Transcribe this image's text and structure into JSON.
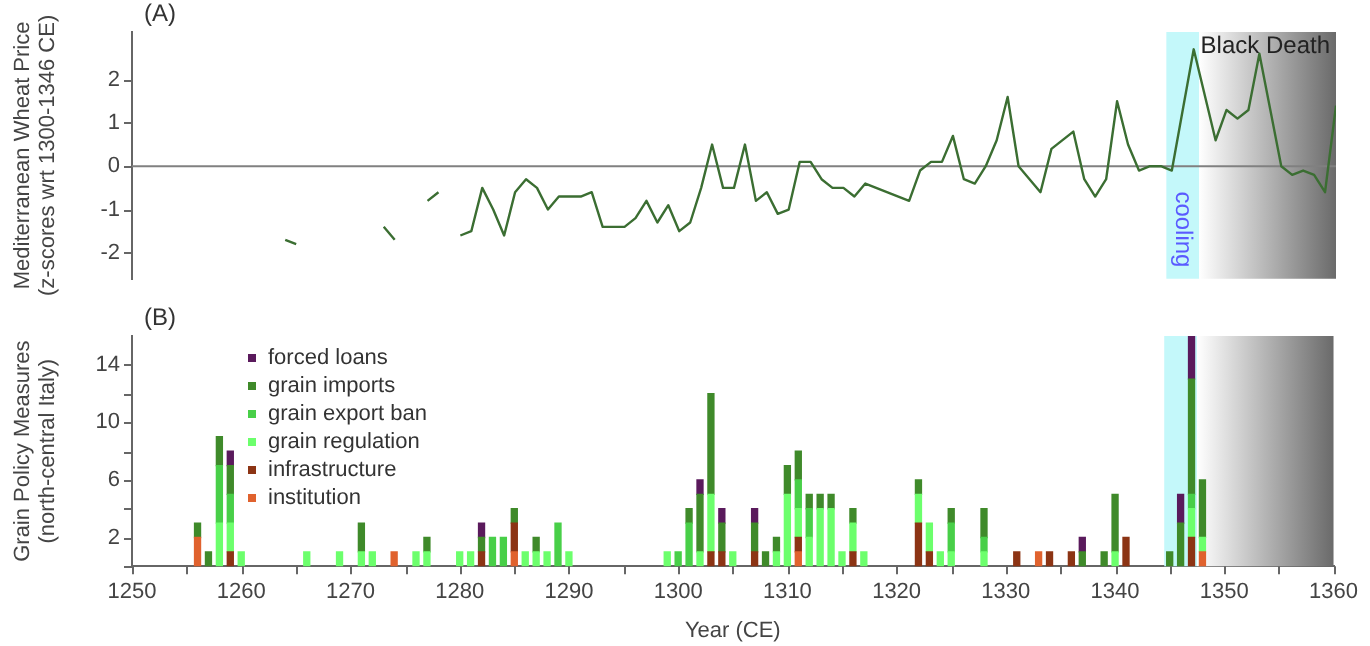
{
  "chart_data": [
    {
      "type": "line",
      "ylabel": "Mediterranean Wheat Price\n(z-scores wrt 1300-1346 CE)",
      "annotations": [
        "(A)"
      ],
      "xlim": [
        1250,
        1360
      ],
      "ylim": [
        -2.6,
        3.1
      ],
      "yticks": [
        -2,
        -1,
        0,
        1,
        2
      ],
      "tick_labels": "y",
      "grid": false,
      "marker": "none",
      "ref_lines": [
        {
          "axis": "y",
          "value": 0,
          "color": "#808080"
        }
      ],
      "bands": [
        {
          "axis": "x",
          "from": 1344.5,
          "to": 1347.5,
          "label": "cooling",
          "color": "#c4f8fa"
        },
        {
          "axis": "x",
          "from": 1347.5,
          "to": 1360,
          "label": "Black Death",
          "color": "#6a6a6a"
        }
      ],
      "series": [
        {
          "color": "#3b6e32",
          "x": [
            1264,
            1265,
            1266,
            1273,
            1274,
            1275,
            1277,
            1278,
            1279,
            1280,
            1281,
            1282,
            1283,
            1284,
            1285,
            1286,
            1287,
            1288,
            1289,
            1290,
            1291,
            1292,
            1293,
            1294,
            1295,
            1296,
            1297,
            1298,
            1299,
            1300,
            1301,
            1302,
            1303,
            1304,
            1305,
            1306,
            1307,
            1308,
            1309,
            1310,
            1311,
            1312,
            1313,
            1314,
            1315,
            1316,
            1317,
            1321,
            1322,
            1323,
            1324,
            1325,
            1326,
            1327,
            1328,
            1329,
            1330,
            1331,
            1333,
            1334,
            1336,
            1337,
            1338,
            1339,
            1340,
            1341,
            1342,
            1343,
            1344,
            1345,
            1347,
            1349,
            1350,
            1351,
            1352,
            1353,
            1355,
            1356,
            1357,
            1358,
            1359,
            1360
          ],
          "values": [
            -1.7,
            -1.8,
            null,
            -1.4,
            -1.7,
            null,
            -0.8,
            -0.6,
            null,
            -1.6,
            -1.5,
            -0.5,
            -1.0,
            -1.6,
            -0.6,
            -0.3,
            -0.5,
            -1.0,
            -0.7,
            -0.7,
            -0.7,
            -0.6,
            -1.4,
            -1.4,
            -1.4,
            -1.2,
            -0.8,
            -1.3,
            -0.9,
            -1.5,
            -1.3,
            -0.5,
            0.5,
            -0.5,
            -0.5,
            0.5,
            -0.8,
            -0.6,
            -1.1,
            -1.0,
            0.1,
            0.1,
            -0.3,
            -0.5,
            -0.5,
            -0.7,
            -0.4,
            -0.8,
            -0.1,
            0.1,
            0.1,
            0.7,
            -0.3,
            -0.4,
            0.0,
            0.6,
            1.6,
            0.0,
            -0.6,
            0.4,
            0.8,
            -0.3,
            -0.7,
            -0.3,
            1.5,
            0.5,
            -0.1,
            0.0,
            0.0,
            -0.1,
            2.7,
            0.6,
            1.3,
            1.1,
            1.3,
            2.6,
            0.0,
            -0.2,
            -0.1,
            -0.2,
            -0.6,
            1.4
          ]
        }
      ]
    },
    {
      "type": "bar",
      "stacked": true,
      "xlabel": "Year (CE)",
      "ylabel": "Grain Policy Measures\n(north-central Italy)",
      "annotations": [
        "(B)"
      ],
      "legend": "top left",
      "grid": false,
      "xlim": [
        1250,
        1360
      ],
      "xticks": [
        1250,
        {
          "value": 1255,
          "label": null
        },
        1260,
        {
          "value": 1265,
          "label": null
        },
        1270,
        {
          "value": 1275,
          "label": null
        },
        1280,
        {
          "value": 1285,
          "label": null
        },
        1290,
        {
          "value": 1295,
          "label": null
        },
        1300,
        {
          "value": 1305,
          "label": null
        },
        1310,
        {
          "value": 1315,
          "label": null
        },
        1320,
        {
          "value": 1325,
          "label": null
        },
        1330,
        {
          "value": 1335,
          "label": null
        },
        1340,
        {
          "value": 1345,
          "label": null
        },
        1350,
        {
          "value": 1355,
          "label": null
        },
        1360
      ],
      "ylim": [
        0,
        16
      ],
      "yticks": [
        {
          "value": 0,
          "label": null
        },
        2,
        {
          "value": 4,
          "label": null
        },
        6,
        {
          "value": 8,
          "label": null
        },
        10,
        {
          "value": 12,
          "label": null
        },
        14
      ],
      "bands": [
        {
          "axis": "x",
          "from": 1344.5,
          "to": 1347.5,
          "color": "#c4f8fa"
        },
        {
          "axis": "x",
          "from": 1347.5,
          "to": 1360,
          "color": "#6a6a6a"
        }
      ],
      "x": [
        1256,
        1257,
        1258,
        1259,
        1260,
        1266,
        1269,
        1271,
        1272,
        1274,
        1276,
        1277,
        1280,
        1281,
        1282,
        1283,
        1284,
        1285,
        1286,
        1287,
        1288,
        1289,
        1290,
        1299,
        1300,
        1301,
        1302,
        1303,
        1304,
        1305,
        1307,
        1308,
        1309,
        1310,
        1311,
        1312,
        1313,
        1314,
        1315,
        1316,
        1317,
        1322,
        1323,
        1324,
        1325,
        1328,
        1331,
        1333,
        1334,
        1336,
        1337,
        1339,
        1340,
        1341,
        1345,
        1346,
        1347,
        1348
      ],
      "series": [
        {
          "name": "institution",
          "color": "#e0622e",
          "values": [
            2,
            null,
            null,
            null,
            null,
            null,
            null,
            null,
            null,
            1,
            null,
            null,
            null,
            null,
            null,
            null,
            null,
            1,
            null,
            null,
            null,
            null,
            null,
            null,
            null,
            null,
            null,
            null,
            null,
            null,
            null,
            null,
            null,
            null,
            1,
            null,
            null,
            null,
            null,
            null,
            null,
            null,
            null,
            null,
            null,
            null,
            null,
            1,
            null,
            null,
            null,
            null,
            null,
            null,
            null,
            null,
            null,
            1
          ]
        },
        {
          "name": "infrastructure",
          "color": "#8c3414",
          "values": [
            null,
            null,
            null,
            1,
            null,
            null,
            null,
            null,
            null,
            null,
            null,
            null,
            null,
            null,
            1,
            null,
            null,
            2,
            null,
            null,
            null,
            null,
            null,
            null,
            null,
            null,
            null,
            1,
            1,
            null,
            1,
            null,
            null,
            null,
            1,
            null,
            null,
            null,
            null,
            1,
            null,
            3,
            1,
            null,
            null,
            null,
            1,
            null,
            1,
            1,
            null,
            null,
            null,
            2,
            null,
            null,
            2,
            null
          ]
        },
        {
          "name": "grain regulation",
          "color": "#6cff6c",
          "values": [
            null,
            null,
            3,
            2,
            1,
            1,
            1,
            1,
            1,
            null,
            1,
            1,
            1,
            1,
            null,
            null,
            null,
            null,
            1,
            1,
            1,
            null,
            1,
            1,
            null,
            null,
            1,
            4,
            null,
            1,
            null,
            null,
            1,
            5,
            2,
            2,
            4,
            4,
            1,
            2,
            1,
            2,
            2,
            1,
            1,
            1,
            null,
            null,
            null,
            null,
            null,
            null,
            1,
            null,
            null,
            null,
            2,
            1
          ]
        },
        {
          "name": "grain export ban",
          "color": "#48cf48",
          "values": [
            null,
            null,
            4,
            2,
            null,
            null,
            null,
            null,
            null,
            null,
            null,
            null,
            null,
            null,
            null,
            2,
            2,
            null,
            null,
            null,
            null,
            3,
            null,
            null,
            1,
            3,
            null,
            null,
            null,
            null,
            null,
            null,
            null,
            null,
            2,
            2,
            null,
            null,
            null,
            null,
            null,
            null,
            null,
            null,
            2,
            1,
            null,
            null,
            null,
            null,
            null,
            null,
            null,
            null,
            null,
            null,
            1,
            null
          ]
        },
        {
          "name": "grain imports",
          "color": "#3f8a2a",
          "values": [
            1,
            1,
            2,
            2,
            null,
            null,
            null,
            2,
            null,
            null,
            null,
            1,
            null,
            null,
            1,
            null,
            null,
            1,
            null,
            1,
            null,
            null,
            null,
            null,
            null,
            1,
            4,
            7,
            2,
            null,
            2,
            1,
            1,
            2,
            2,
            1,
            1,
            1,
            null,
            1,
            null,
            1,
            null,
            null,
            1,
            2,
            null,
            null,
            null,
            null,
            1,
            1,
            4,
            null,
            1,
            3,
            8,
            4
          ]
        },
        {
          "name": "forced loans",
          "color": "#5a1a5c",
          "values": [
            null,
            null,
            null,
            1,
            null,
            null,
            null,
            null,
            null,
            null,
            null,
            null,
            null,
            null,
            1,
            null,
            null,
            null,
            null,
            null,
            null,
            null,
            null,
            null,
            null,
            null,
            1,
            null,
            1,
            null,
            1,
            null,
            null,
            null,
            null,
            null,
            null,
            null,
            null,
            null,
            null,
            null,
            null,
            null,
            null,
            null,
            null,
            null,
            null,
            null,
            1,
            null,
            null,
            null,
            null,
            2,
            3,
            null
          ]
        }
      ]
    }
  ]
}
